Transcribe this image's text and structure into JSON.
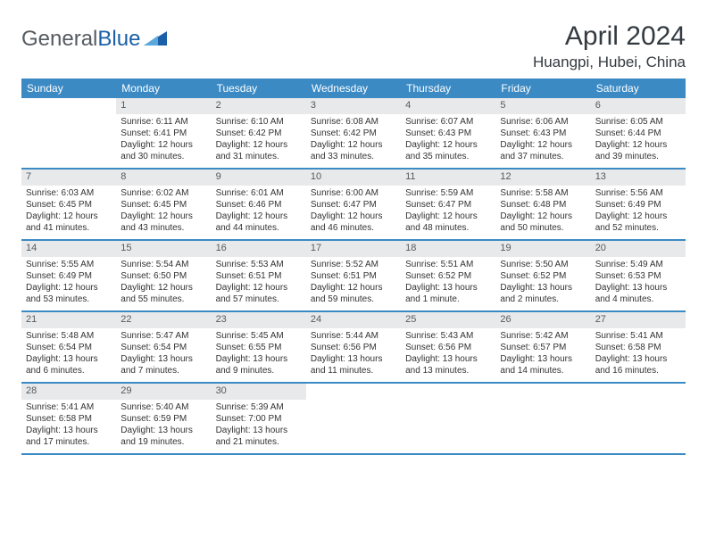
{
  "logo": {
    "part1": "General",
    "part2": "Blue"
  },
  "title": "April 2024",
  "location": "Huangpi, Hubei, China",
  "colors": {
    "header_bg": "#3b8ac4",
    "header_text": "#ffffff",
    "daynum_bg": "#e8e9ea",
    "border": "#3b8ac4",
    "text": "#333333",
    "logo_gray": "#555b61",
    "logo_blue": "#1a5fa8"
  },
  "weekdays": [
    "Sunday",
    "Monday",
    "Tuesday",
    "Wednesday",
    "Thursday",
    "Friday",
    "Saturday"
  ],
  "weeks": [
    [
      null,
      {
        "n": "1",
        "sr": "Sunrise: 6:11 AM",
        "ss": "Sunset: 6:41 PM",
        "d1": "Daylight: 12 hours",
        "d2": "and 30 minutes."
      },
      {
        "n": "2",
        "sr": "Sunrise: 6:10 AM",
        "ss": "Sunset: 6:42 PM",
        "d1": "Daylight: 12 hours",
        "d2": "and 31 minutes."
      },
      {
        "n": "3",
        "sr": "Sunrise: 6:08 AM",
        "ss": "Sunset: 6:42 PM",
        "d1": "Daylight: 12 hours",
        "d2": "and 33 minutes."
      },
      {
        "n": "4",
        "sr": "Sunrise: 6:07 AM",
        "ss": "Sunset: 6:43 PM",
        "d1": "Daylight: 12 hours",
        "d2": "and 35 minutes."
      },
      {
        "n": "5",
        "sr": "Sunrise: 6:06 AM",
        "ss": "Sunset: 6:43 PM",
        "d1": "Daylight: 12 hours",
        "d2": "and 37 minutes."
      },
      {
        "n": "6",
        "sr": "Sunrise: 6:05 AM",
        "ss": "Sunset: 6:44 PM",
        "d1": "Daylight: 12 hours",
        "d2": "and 39 minutes."
      }
    ],
    [
      {
        "n": "7",
        "sr": "Sunrise: 6:03 AM",
        "ss": "Sunset: 6:45 PM",
        "d1": "Daylight: 12 hours",
        "d2": "and 41 minutes."
      },
      {
        "n": "8",
        "sr": "Sunrise: 6:02 AM",
        "ss": "Sunset: 6:45 PM",
        "d1": "Daylight: 12 hours",
        "d2": "and 43 minutes."
      },
      {
        "n": "9",
        "sr": "Sunrise: 6:01 AM",
        "ss": "Sunset: 6:46 PM",
        "d1": "Daylight: 12 hours",
        "d2": "and 44 minutes."
      },
      {
        "n": "10",
        "sr": "Sunrise: 6:00 AM",
        "ss": "Sunset: 6:47 PM",
        "d1": "Daylight: 12 hours",
        "d2": "and 46 minutes."
      },
      {
        "n": "11",
        "sr": "Sunrise: 5:59 AM",
        "ss": "Sunset: 6:47 PM",
        "d1": "Daylight: 12 hours",
        "d2": "and 48 minutes."
      },
      {
        "n": "12",
        "sr": "Sunrise: 5:58 AM",
        "ss": "Sunset: 6:48 PM",
        "d1": "Daylight: 12 hours",
        "d2": "and 50 minutes."
      },
      {
        "n": "13",
        "sr": "Sunrise: 5:56 AM",
        "ss": "Sunset: 6:49 PM",
        "d1": "Daylight: 12 hours",
        "d2": "and 52 minutes."
      }
    ],
    [
      {
        "n": "14",
        "sr": "Sunrise: 5:55 AM",
        "ss": "Sunset: 6:49 PM",
        "d1": "Daylight: 12 hours",
        "d2": "and 53 minutes."
      },
      {
        "n": "15",
        "sr": "Sunrise: 5:54 AM",
        "ss": "Sunset: 6:50 PM",
        "d1": "Daylight: 12 hours",
        "d2": "and 55 minutes."
      },
      {
        "n": "16",
        "sr": "Sunrise: 5:53 AM",
        "ss": "Sunset: 6:51 PM",
        "d1": "Daylight: 12 hours",
        "d2": "and 57 minutes."
      },
      {
        "n": "17",
        "sr": "Sunrise: 5:52 AM",
        "ss": "Sunset: 6:51 PM",
        "d1": "Daylight: 12 hours",
        "d2": "and 59 minutes."
      },
      {
        "n": "18",
        "sr": "Sunrise: 5:51 AM",
        "ss": "Sunset: 6:52 PM",
        "d1": "Daylight: 13 hours",
        "d2": "and 1 minute."
      },
      {
        "n": "19",
        "sr": "Sunrise: 5:50 AM",
        "ss": "Sunset: 6:52 PM",
        "d1": "Daylight: 13 hours",
        "d2": "and 2 minutes."
      },
      {
        "n": "20",
        "sr": "Sunrise: 5:49 AM",
        "ss": "Sunset: 6:53 PM",
        "d1": "Daylight: 13 hours",
        "d2": "and 4 minutes."
      }
    ],
    [
      {
        "n": "21",
        "sr": "Sunrise: 5:48 AM",
        "ss": "Sunset: 6:54 PM",
        "d1": "Daylight: 13 hours",
        "d2": "and 6 minutes."
      },
      {
        "n": "22",
        "sr": "Sunrise: 5:47 AM",
        "ss": "Sunset: 6:54 PM",
        "d1": "Daylight: 13 hours",
        "d2": "and 7 minutes."
      },
      {
        "n": "23",
        "sr": "Sunrise: 5:45 AM",
        "ss": "Sunset: 6:55 PM",
        "d1": "Daylight: 13 hours",
        "d2": "and 9 minutes."
      },
      {
        "n": "24",
        "sr": "Sunrise: 5:44 AM",
        "ss": "Sunset: 6:56 PM",
        "d1": "Daylight: 13 hours",
        "d2": "and 11 minutes."
      },
      {
        "n": "25",
        "sr": "Sunrise: 5:43 AM",
        "ss": "Sunset: 6:56 PM",
        "d1": "Daylight: 13 hours",
        "d2": "and 13 minutes."
      },
      {
        "n": "26",
        "sr": "Sunrise: 5:42 AM",
        "ss": "Sunset: 6:57 PM",
        "d1": "Daylight: 13 hours",
        "d2": "and 14 minutes."
      },
      {
        "n": "27",
        "sr": "Sunrise: 5:41 AM",
        "ss": "Sunset: 6:58 PM",
        "d1": "Daylight: 13 hours",
        "d2": "and 16 minutes."
      }
    ],
    [
      {
        "n": "28",
        "sr": "Sunrise: 5:41 AM",
        "ss": "Sunset: 6:58 PM",
        "d1": "Daylight: 13 hours",
        "d2": "and 17 minutes."
      },
      {
        "n": "29",
        "sr": "Sunrise: 5:40 AM",
        "ss": "Sunset: 6:59 PM",
        "d1": "Daylight: 13 hours",
        "d2": "and 19 minutes."
      },
      {
        "n": "30",
        "sr": "Sunrise: 5:39 AM",
        "ss": "Sunset: 7:00 PM",
        "d1": "Daylight: 13 hours",
        "d2": "and 21 minutes."
      },
      null,
      null,
      null,
      null
    ]
  ]
}
